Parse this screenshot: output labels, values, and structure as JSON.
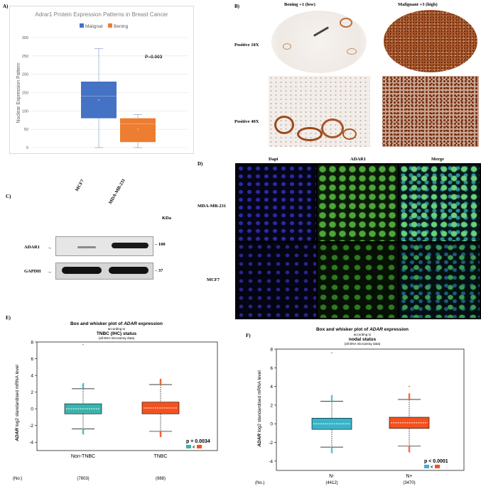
{
  "panels": {
    "A": "A)",
    "B": "B)",
    "C": "C)",
    "D": "D)",
    "E": "E)",
    "F": "F)"
  },
  "panel_a": {
    "title": "Adrar1 Protein Expression Patterns in Breast Cancer",
    "legend": [
      "Malignat",
      "Bening"
    ],
    "ylabel": "Nuclear Expression Pattern",
    "pvalue": "P=0.003",
    "colors": {
      "malignant": "#4472c4",
      "benign": "#ed7d31"
    }
  },
  "panel_b": {
    "col_headers": [
      "Bening +1 (low)",
      "Malignant +3 (high)"
    ],
    "row_labels": [
      "Positive 10X",
      "Positive 40X"
    ]
  },
  "panel_c": {
    "lanes": [
      "MCF7",
      "MDA-MB-231"
    ],
    "kda_label": "KDa",
    "bands": [
      "ADAR1",
      "GAPDH"
    ],
    "markers": [
      "100",
      "37"
    ]
  },
  "panel_d": {
    "col_headers": [
      "Dapi",
      "ADAR1",
      "Merge"
    ],
    "row_labels": [
      "MDA-MB-231",
      "MCF7"
    ]
  },
  "panel_e": {
    "title_line1_pre": "Box and whisker plot of ",
    "title_line1_gene": "ADAR",
    "title_line1_post": " expression",
    "title_line2": "according to",
    "title_line3": "TNBC (IHC) status",
    "title_line4": "(all DNA microarray data)",
    "ylabel_gene": "ADAR",
    "ylabel_rest": " log2 standardised mRNA level",
    "pvalue": "p = 0.0034",
    "no_label": "(No:)",
    "counts": [
      "(7803)",
      "(988)"
    ]
  },
  "panel_f": {
    "title_line1_pre": "Box and whisker plot of ",
    "title_line1_gene": "ADAR",
    "title_line1_post": " expression",
    "title_line2": "according to",
    "title_line3": "nodal status",
    "title_line4": "(all DNA microarray data)",
    "ylabel_gene": "ADAR",
    "ylabel_rest": " log2 standardised mRNA level",
    "pvalue": "p < 0.0001",
    "no_label": "(No.)",
    "counts": [
      "(4412)",
      "(3470)"
    ]
  },
  "chart_data": [
    {
      "type": "box",
      "panel": "A",
      "title": "Adrar1 Protein Expression Patterns in Breast Cancer",
      "ylabel": "Nuclear Expression Pattern",
      "ylim": [
        0,
        300
      ],
      "yticks": [
        0,
        50,
        100,
        150,
        200,
        250,
        300
      ],
      "grid": true,
      "legend": "top",
      "series": [
        {
          "name": "Malignat",
          "min": 0,
          "q1": 80,
          "median": 140,
          "q3": 180,
          "max": 270,
          "mean": 130
        },
        {
          "name": "Bening",
          "min": 0,
          "q1": 15,
          "median": 65,
          "q3": 80,
          "max": 90,
          "mean": 50
        }
      ],
      "annotation": "P=0.003"
    },
    {
      "type": "box",
      "panel": "E",
      "ylim": [
        -5,
        8
      ],
      "yticks": [
        -4,
        -2,
        0,
        2,
        4,
        6,
        8
      ],
      "categories": [
        "Non-TNBC",
        "TNBC"
      ],
      "series": [
        {
          "name": "Non-TNBC",
          "whisker_low": -2.4,
          "q1": -0.6,
          "median": 0.0,
          "q3": 0.6,
          "whisker_high": 2.4,
          "outlier_high": 7.7,
          "color": "#3ab3ad"
        },
        {
          "name": "TNBC",
          "whisker_low": -2.7,
          "q1": -0.6,
          "median": 0.1,
          "q3": 0.8,
          "whisker_high": 2.9,
          "outlier_high": 3.5,
          "outlier_low": -3.3,
          "color": "#f4511e"
        }
      ],
      "annotation": "p = 0.0034"
    },
    {
      "type": "box",
      "panel": "F",
      "ylim": [
        -5,
        8
      ],
      "yticks": [
        -4,
        -2,
        0,
        2,
        4,
        6,
        8
      ],
      "categories": [
        "N-",
        "N+"
      ],
      "series": [
        {
          "name": "N-",
          "whisker_low": -2.5,
          "q1": -0.6,
          "median": 0.0,
          "q3": 0.6,
          "whisker_high": 2.4,
          "outlier_high": 7.6,
          "color": "#3ab3c9"
        },
        {
          "name": "N+",
          "whisker_low": -2.4,
          "q1": -0.5,
          "median": 0.1,
          "q3": 0.7,
          "whisker_high": 2.6,
          "outlier_high": 4.0,
          "color": "#f4511e"
        }
      ],
      "annotation": "p < 0.0001"
    }
  ]
}
